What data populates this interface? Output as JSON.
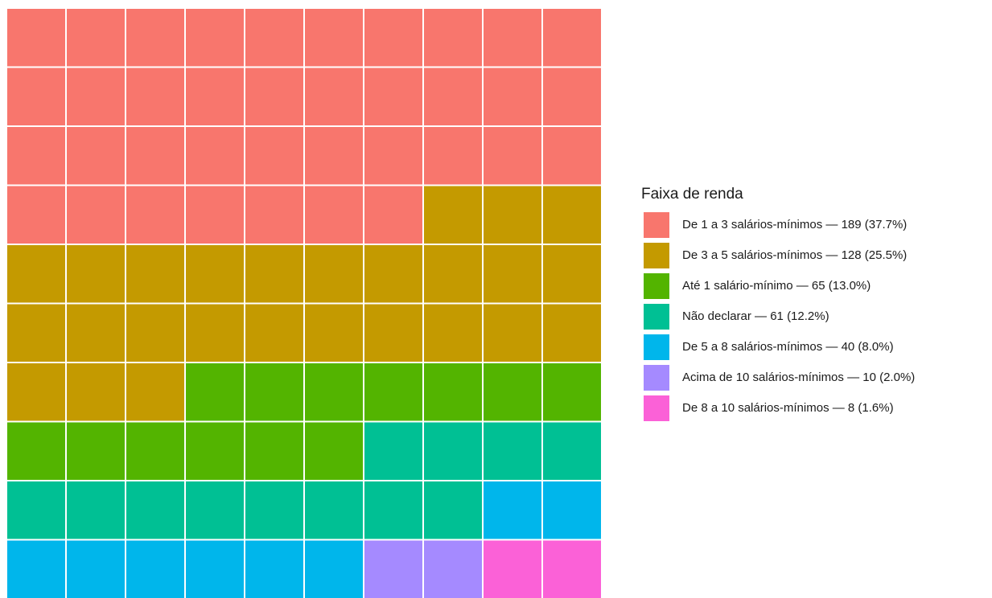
{
  "chart_data": {
    "type": "waffle",
    "legend_title": "Faixa de renda",
    "rows": 10,
    "columns": 10,
    "series": [
      {
        "name": "De 1 a 3 salários-mínimos — 189 (37.7%)",
        "color": "#F8766D",
        "value": 37
      },
      {
        "name": "De 3 a 5 salários-mínimos — 128 (25.5%)",
        "color": "#C49A00",
        "value": 26
      },
      {
        "name": "Até 1 salário-mínimo — 65 (13.0%)",
        "color": "#53B400",
        "value": 13
      },
      {
        "name": "Não declarar — 61 (12.2%)",
        "color": "#00C094",
        "value": 12
      },
      {
        "name": "De 5 a 8 salários-mínimos — 40 (8.0%)",
        "color": "#00B6EB",
        "value": 8
      },
      {
        "name": "Acima de 10 salários-mínimos — 10 (2.0%)",
        "color": "#A58AFF",
        "value": 2
      },
      {
        "name": "De 8 a 10 salários-mínimos — 8 (1.6%)",
        "color": "#FB61D7",
        "value": 2
      }
    ]
  }
}
